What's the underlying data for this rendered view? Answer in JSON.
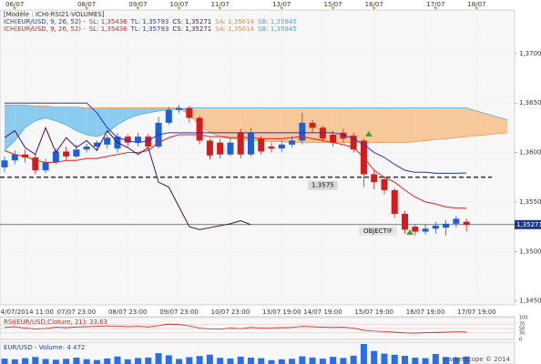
{
  "chart_data": [
    {
      "type": "candlestick",
      "legend_title": "[Modèle : ICHI-RSI21-VOLUMES]",
      "legend": [
        {
          "title": "ICH(EUR/USD, 9, 26, 52) -",
          "color": "#1f3fb0",
          "items": [
            {
              "text": "SL: 1,35436",
              "color": "#d42020"
            },
            {
              "text": "TL: 1,35793",
              "color": "#1f3fb0"
            },
            {
              "text": "CS: 1,35271",
              "color": "#4a1050"
            },
            {
              "text": "SA: 1,35614",
              "color": "#e8903a"
            },
            {
              "text": "SB: 1,35845",
              "color": "#3aa8e0"
            }
          ]
        },
        {
          "title": "ICH(EUR/USD, 9, 26, 52) -",
          "color": "#d42020",
          "items": [
            {
              "text": "SL: 1,35436",
              "color": "#d42020"
            },
            {
              "text": "TL: 1,35793",
              "color": "#1f3fb0"
            },
            {
              "text": "CS: 1,35271",
              "color": "#4a1050"
            },
            {
              "text": "SA: 1,35614",
              "color": "#e8903a"
            },
            {
              "text": "SB: 1,35845",
              "color": "#3aa8e0"
            }
          ]
        }
      ],
      "categories": [
        null,
        null,
        "04/07/2014 11:00",
        null,
        null,
        null,
        null,
        "07/07 23:00",
        null,
        null,
        null,
        null,
        "08/07 23:00",
        null,
        null,
        null,
        null,
        "09/07 23:00",
        null,
        null,
        null,
        null,
        "10/07 23:00",
        null,
        null,
        null,
        null,
        "13/07 19:00",
        null,
        null,
        null,
        "14/07 19:00",
        null,
        null,
        null,
        null,
        "15/07 19:00",
        null,
        null,
        null,
        null,
        "16/07 19:00",
        null,
        null,
        null,
        null,
        "17/07 19:00",
        null,
        null,
        null
      ],
      "top_categories": [
        null,
        "06/07",
        null,
        null,
        null,
        null,
        null,
        null,
        "08/07",
        null,
        null,
        null,
        null,
        "09/07",
        null,
        null,
        null,
        "10/07",
        null,
        null,
        null,
        "11/07",
        null,
        null,
        null,
        null,
        null,
        "13/07",
        null,
        null,
        null,
        null,
        "15/07",
        null,
        null,
        null,
        "16/07",
        null,
        null,
        null,
        null,
        null,
        "17/07",
        null,
        null,
        null,
        "18/07",
        null,
        null,
        null
      ],
      "open": [
        1.3585,
        1.3592,
        1.3598,
        1.3595,
        1.3582,
        1.359,
        1.3601,
        1.3596,
        1.3603,
        1.3606,
        1.3608,
        1.3604,
        1.3616,
        1.361,
        1.3616,
        1.3606,
        1.363,
        1.3643,
        1.3645,
        1.3635,
        1.3612,
        1.361,
        1.3598,
        1.362,
        1.3598,
        1.3614,
        1.3606,
        1.3604,
        1.3608,
        1.3612,
        1.363,
        1.3625,
        1.3618,
        1.362,
        1.3617,
        1.3612,
        1.3578,
        1.3573,
        1.3562,
        1.3538,
        1.3525,
        1.352,
        1.3523,
        1.3524,
        1.3528,
        1.353,
        null,
        null,
        null,
        null
      ],
      "high": [
        1.3596,
        1.3602,
        1.3603,
        1.3598,
        1.3594,
        1.3604,
        1.3606,
        1.3608,
        1.3609,
        1.3612,
        1.3618,
        1.362,
        1.3618,
        1.362,
        1.3619,
        1.3636,
        1.3646,
        1.3648,
        1.3647,
        1.3637,
        1.3614,
        1.3614,
        1.3614,
        1.3624,
        1.3625,
        1.3617,
        1.361,
        1.3612,
        1.3616,
        1.364,
        1.3633,
        1.3627,
        1.3622,
        1.3624,
        1.362,
        1.3614,
        1.3582,
        1.3576,
        1.3564,
        1.3541,
        1.3527,
        1.3527,
        1.353,
        1.3532,
        1.3536,
        1.3533,
        null,
        null,
        null,
        null
      ],
      "low": [
        1.358,
        1.3588,
        1.359,
        1.3578,
        1.3579,
        1.3588,
        1.3593,
        1.3594,
        1.36,
        1.3602,
        1.3604,
        1.36,
        1.3606,
        1.3606,
        1.3603,
        1.3604,
        1.3628,
        1.364,
        1.363,
        1.3608,
        1.3593,
        1.3594,
        1.3596,
        1.3594,
        1.3596,
        1.3598,
        1.36,
        1.36,
        1.3605,
        1.3608,
        1.362,
        1.3612,
        1.3606,
        1.361,
        1.36,
        1.3565,
        1.3563,
        1.3558,
        1.3534,
        1.3518,
        1.3516,
        1.3517,
        1.3518,
        1.3516,
        1.3524,
        1.352,
        null,
        null,
        null,
        null
      ],
      "close": [
        1.3592,
        1.3598,
        1.3595,
        1.3582,
        1.359,
        1.3601,
        1.3596,
        1.3603,
        1.3606,
        1.361,
        1.3615,
        1.3616,
        1.361,
        1.3616,
        1.3606,
        1.363,
        1.3643,
        1.3645,
        1.3635,
        1.3612,
        1.3597,
        1.3598,
        1.361,
        1.3598,
        1.362,
        1.3601,
        1.3604,
        1.3608,
        1.3612,
        1.363,
        1.3625,
        1.3614,
        1.361,
        1.3614,
        1.3603,
        1.3578,
        1.357,
        1.3562,
        1.3538,
        1.3522,
        1.352,
        1.3523,
        1.3526,
        1.3528,
        1.3533,
        1.35271,
        null,
        null,
        null,
        null
      ],
      "up_color": "#1f5fd6",
      "down_color": "#d41c1c",
      "series": [
        {
          "color": "#e02020",
          "values": [
            1.3602,
            1.3598,
            1.3596,
            1.3592,
            1.359,
            1.359,
            1.3592,
            1.3592,
            1.3594,
            1.3594,
            1.3596,
            1.3598,
            1.36,
            1.36,
            1.3602,
            1.361,
            1.3615,
            1.3618,
            1.3618,
            1.3618,
            1.3616,
            1.3616,
            1.3615,
            1.3615,
            1.3615,
            1.3614,
            1.3614,
            1.3614,
            1.3615,
            1.3616,
            1.3614,
            1.3612,
            1.361,
            1.3608,
            1.3605,
            1.3595,
            1.3582,
            1.3575,
            1.357,
            1.3562,
            1.3555,
            1.355,
            1.3548,
            1.3545,
            1.3544,
            1.35436,
            null,
            null,
            null,
            null
          ]
        },
        {
          "color": "#2030d0",
          "values": [
            1.365,
            1.365,
            1.365,
            1.365,
            1.365,
            1.365,
            1.365,
            1.365,
            1.365,
            1.364,
            1.3625,
            1.3615,
            1.3612,
            1.361,
            1.3612,
            1.3618,
            1.362,
            1.362,
            1.362,
            1.362,
            1.362,
            1.362,
            1.362,
            1.362,
            1.362,
            1.362,
            1.362,
            1.362,
            1.362,
            1.362,
            1.362,
            1.362,
            1.362,
            1.3618,
            1.3614,
            1.3608,
            1.36,
            1.3595,
            1.3588,
            1.3582,
            1.358,
            1.358,
            1.3579,
            1.3579,
            1.3579,
            1.35793,
            null,
            null,
            null,
            null
          ]
        },
        {
          "color": "#4a1050",
          "values": [
            1.3615,
            1.3622,
            1.3605,
            1.3598,
            1.3625,
            1.36,
            1.3615,
            1.3605,
            1.3612,
            1.3602,
            1.3622,
            1.361,
            1.3605,
            1.3598,
            1.3605,
            1.357,
            1.3565,
            1.3545,
            1.3525,
            1.3522,
            1.3524,
            1.3526,
            1.3528,
            1.3531,
            1.3527,
            null,
            null,
            null,
            null,
            null,
            null,
            null,
            null,
            null,
            null,
            null,
            null,
            null,
            null,
            null,
            null,
            null,
            null,
            null,
            null,
            null,
            null,
            null,
            null,
            null
          ]
        }
      ],
      "cloud": {
        "up_color": "#8ccbf0",
        "down_color": "#f6c89a",
        "up_edge": "#3aa8e0",
        "down_edge": "#e8903a",
        "span_a": [
          1.3648,
          1.3648,
          1.3648,
          1.3647,
          1.3647,
          1.3646,
          1.3646,
          1.3646,
          1.3645,
          1.3645,
          1.3645,
          1.3645,
          1.3645,
          1.3645,
          1.3645,
          1.3645,
          1.3645,
          1.3645,
          1.3638,
          1.3628,
          1.362,
          1.3616,
          1.3614,
          1.3613,
          1.3612,
          1.3612,
          1.3611,
          1.3611,
          1.361,
          1.361,
          1.361,
          1.361,
          1.361,
          1.361,
          1.361,
          1.361,
          1.361,
          1.361,
          1.361,
          1.361,
          1.3611,
          1.3612,
          1.3613,
          1.3614,
          1.3615,
          1.3616,
          1.3617,
          1.3618,
          1.3619,
          1.362
        ],
        "span_b": [
          1.3602,
          1.3612,
          1.3625,
          1.3632,
          1.3635,
          1.3632,
          1.3628,
          1.3622,
          1.3618,
          1.3616,
          1.362,
          1.3628,
          1.3634,
          1.3638,
          1.364,
          1.3642,
          1.3643,
          1.3644,
          1.3645,
          1.3645,
          1.3645,
          1.3645,
          1.3645,
          1.3645,
          1.3645,
          1.3645,
          1.3645,
          1.3645,
          1.3645,
          1.3645,
          1.3645,
          1.3645,
          1.3645,
          1.3645,
          1.3645,
          1.3645,
          1.3645,
          1.3645,
          1.3645,
          1.3645,
          1.3645,
          1.3645,
          1.3645,
          1.3645,
          1.3645,
          1.3645,
          1.3642,
          1.3639,
          1.3636,
          1.3633
        ]
      },
      "levels": [
        {
          "value": 1.3575,
          "label": "1.3575"
        },
        {
          "value": 1.35271,
          "label": "1,35271"
        }
      ],
      "annotation": "OBJECTIF",
      "ylim": [
        1.3446,
        1.3744
      ],
      "yticks": [
        {
          "value": 1.345,
          "label": "1,3450"
        },
        {
          "value": 1.35,
          "label": "1,3500"
        },
        {
          "value": 1.355,
          "label": "1,3550"
        },
        {
          "value": 1.36,
          "label": "1,3600"
        },
        {
          "value": 1.365,
          "label": "1,3650"
        },
        {
          "value": 1.37,
          "label": "1,3700"
        }
      ],
      "grid": true
    },
    {
      "type": "line",
      "title": "RSI(EUR/USD,Cloture, 21): 33,63",
      "color": "#d42020",
      "values": [
        55,
        58,
        52,
        48,
        50,
        56,
        54,
        57,
        58,
        60,
        62,
        61,
        58,
        60,
        57,
        63,
        70,
        68,
        62,
        52,
        48,
        47,
        52,
        49,
        55,
        52,
        53,
        54,
        55,
        60,
        58,
        56,
        55,
        56,
        52,
        42,
        38,
        36,
        33,
        30,
        29,
        31,
        32,
        33,
        35,
        33.63,
        null,
        null,
        null,
        null
      ],
      "ylim": [
        0,
        100
      ],
      "yticks": [
        0,
        30,
        50,
        70,
        100
      ]
    },
    {
      "type": "bar",
      "title": "EUR/USD - Volume: 4 472",
      "color": "#2a6ee6",
      "credit": "marketscope © 2014",
      "values": [
        3200,
        2800,
        3500,
        4200,
        3000,
        2600,
        3100,
        3800,
        2900,
        2400,
        3300,
        4500,
        2800,
        3600,
        3900,
        6500,
        5200,
        3000,
        4100,
        4800,
        5600,
        3700,
        3300,
        4400,
        3800,
        3500,
        2300,
        2800,
        3100,
        4600,
        3900,
        3200,
        4300,
        3600,
        5000,
        12000,
        7800,
        6200,
        5500,
        4900,
        3800,
        3500,
        6000,
        4200,
        3900,
        4472,
        null,
        null,
        null,
        null
      ]
    }
  ]
}
